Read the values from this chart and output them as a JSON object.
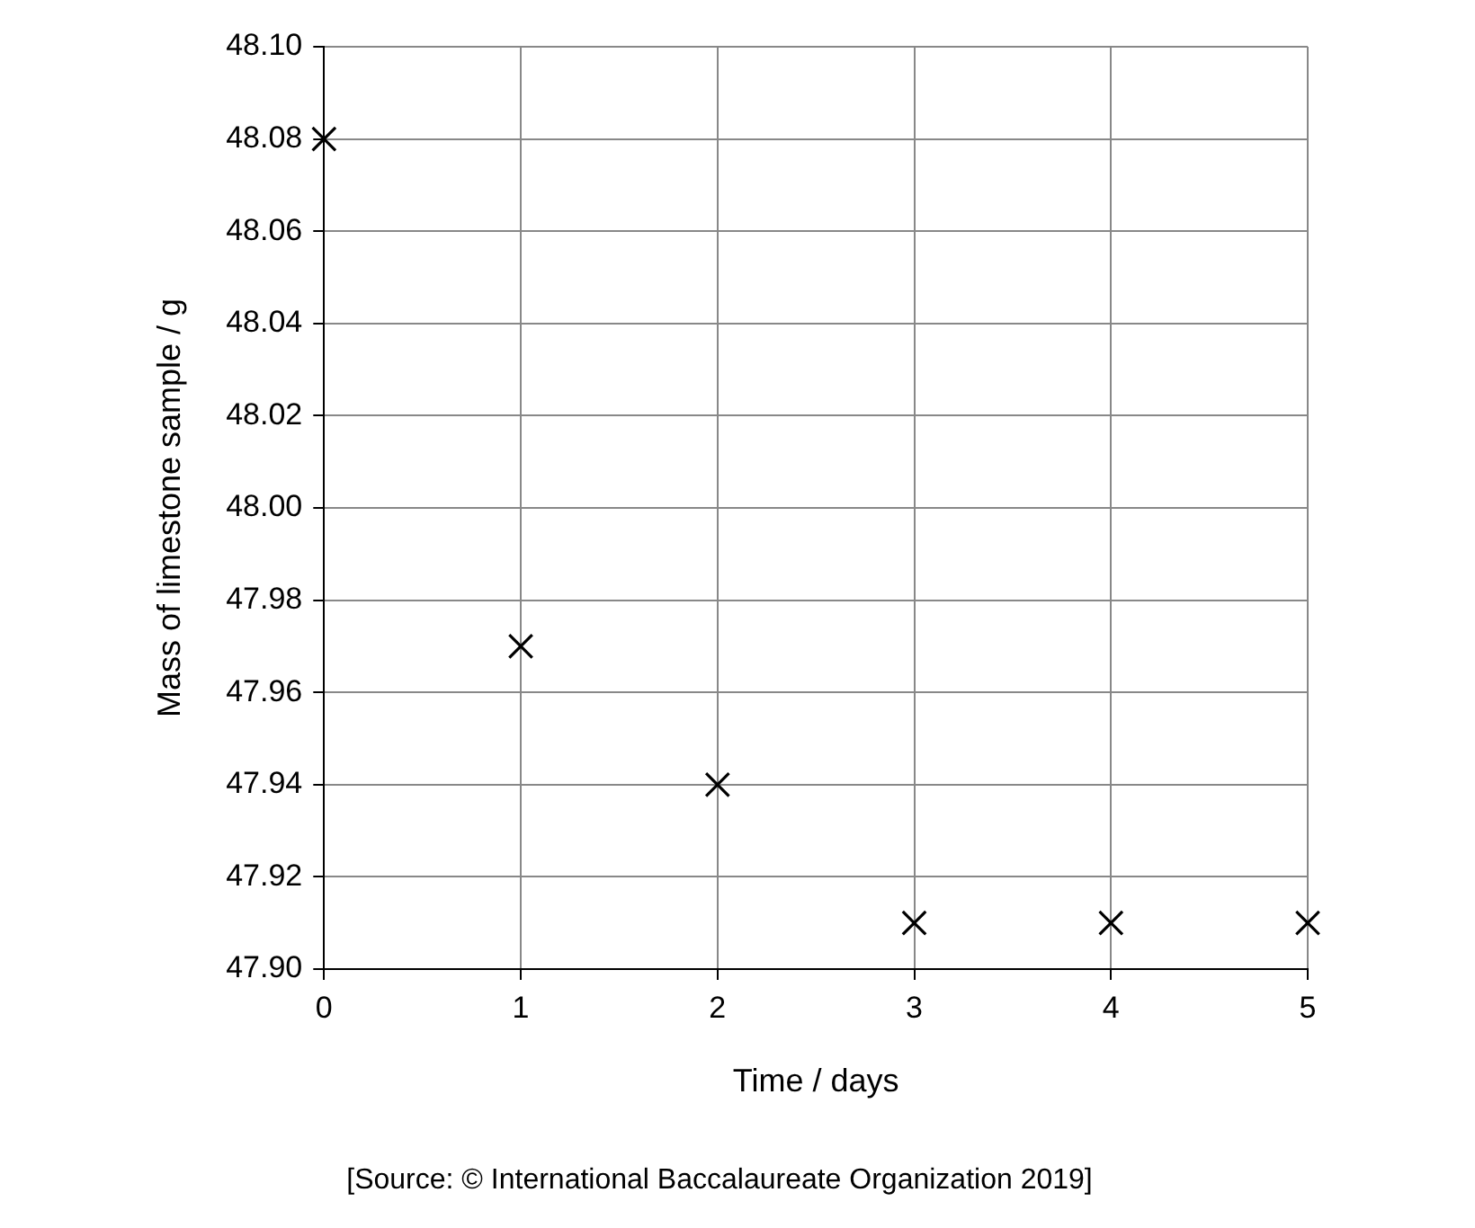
{
  "chart_data": {
    "type": "scatter",
    "xlabel": "Time / days",
    "ylabel": "Mass of limestone sample / g",
    "annotations": [
      "[Source: © International Baccalaureate Organization 2019]"
    ],
    "x": [
      0,
      1,
      2,
      3,
      4,
      5
    ],
    "series": [
      {
        "color": "#000000",
        "values": [
          48.08,
          47.97,
          47.94,
          47.91,
          47.91,
          47.91
        ]
      }
    ],
    "xlim": [
      0,
      5
    ],
    "xticks": [
      0,
      1,
      2,
      3,
      4,
      5
    ],
    "ylim": [
      47.9,
      48.1
    ],
    "yticks": [
      {
        "value": 47.9,
        "label": "47.90"
      },
      47.92,
      47.94,
      47.96,
      47.98,
      {
        "value": 48,
        "label": "48.00"
      },
      48.02,
      48.04,
      48.06,
      48.08,
      {
        "value": 48.1,
        "label": "48.10"
      }
    ],
    "grid": true,
    "legend": false,
    "marker": "cross"
  }
}
